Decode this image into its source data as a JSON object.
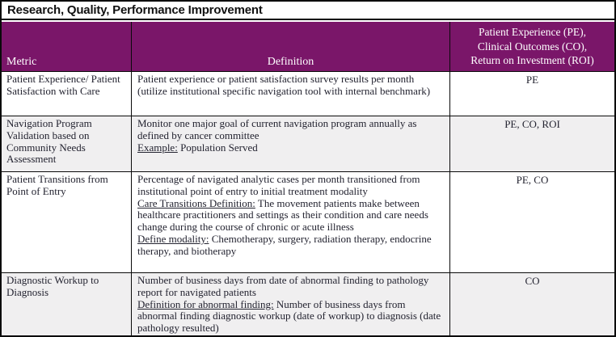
{
  "page": {
    "title": "Research, Quality, Performance Improvement"
  },
  "table": {
    "headers": {
      "metric": "Metric",
      "definition": "Definition",
      "outcomes_lines": [
        "Patient Experience (PE),",
        "Clinical Outcomes (CO),",
        "Return on Investment (ROI)"
      ]
    },
    "rows": [
      {
        "metric": "Patient Experience/ Patient Satisfaction with Care",
        "definition": [
          {
            "label": "",
            "text": "Patient experience or patient satisfaction survey results per month (utilize institutional specific navigation tool with internal benchmark)"
          }
        ],
        "outcomes": "PE"
      },
      {
        "metric": "Navigation Program Validation based on Community Needs Assessment",
        "definition": [
          {
            "label": "",
            "text": "Monitor one major goal of current navigation program annually as defined by cancer committee"
          },
          {
            "label": "Example:",
            "text": " Population Served"
          }
        ],
        "outcomes": "PE, CO, ROI"
      },
      {
        "metric": "Patient Transitions from Point of Entry",
        "definition": [
          {
            "label": "",
            "text": "Percentage of navigated analytic cases per month transitioned from institutional point of entry to initial treatment modality"
          },
          {
            "label": "Care Transitions Definition:",
            "text": " The movement patients make between healthcare practitioners and settings as their condition and care needs change during the course of chronic or acute illness"
          },
          {
            "label": "Define modality:",
            "text": " Chemotherapy, surgery, radiation therapy, endocrine therapy, and biotherapy"
          }
        ],
        "outcomes": "PE, CO"
      },
      {
        "metric": "Diagnostic Workup to Diagnosis",
        "definition": [
          {
            "label": "",
            "text": "Number of business days from date of abnormal finding to pathology report for navigated patients"
          },
          {
            "label": "Definition for abnormal finding:",
            "text": " Number of business days from abnormal finding diagnostic workup (date of workup) to diagnosis (date pathology resulted)"
          }
        ],
        "outcomes": "CO"
      }
    ]
  },
  "colors": {
    "header_purple": "#7A1669",
    "shaded_row": "#F0EFF0",
    "border": "#0A0A0A",
    "body_text": "#232330"
  }
}
